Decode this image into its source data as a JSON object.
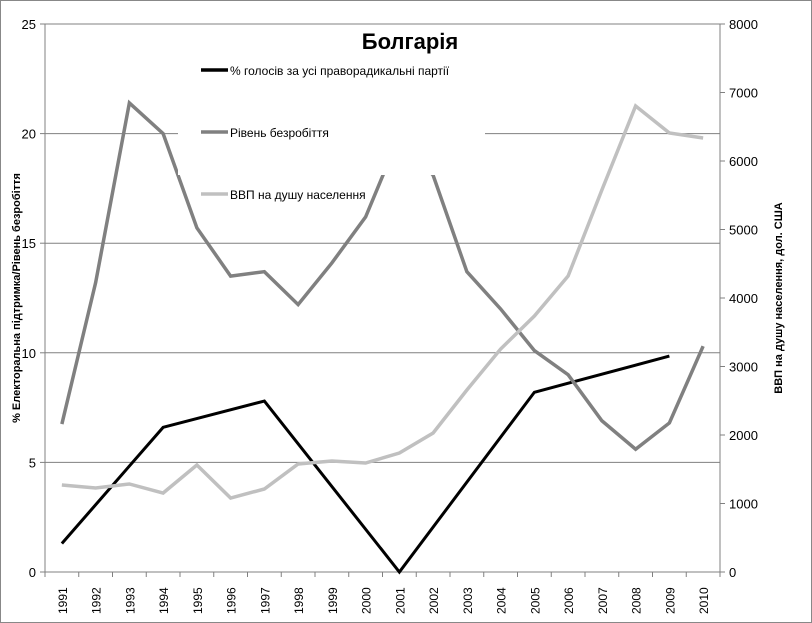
{
  "chart_data": {
    "type": "line",
    "title": "Болгарія",
    "xlabel": "",
    "ylabel": "% Електоральна підтримка/Рівень безробіття",
    "y2label": "ВВП на душу населення, дол. США",
    "categories": [
      "1991",
      "1992",
      "1993",
      "1994",
      "1995",
      "1996",
      "1997",
      "1998",
      "1999",
      "2000",
      "2001",
      "2002",
      "2003",
      "2004",
      "2005",
      "2006",
      "2007",
      "2008",
      "2009",
      "2010"
    ],
    "ylim": [
      0,
      25
    ],
    "yticks": [
      0,
      5,
      10,
      15,
      20,
      25
    ],
    "y2lim": [
      0,
      8000
    ],
    "y2ticks": [
      0,
      1000,
      2000,
      3000,
      4000,
      5000,
      6000,
      7000,
      8000
    ],
    "grid": true,
    "legend": "top-center",
    "series": [
      {
        "name": "% голосів за усі праворадикальні партії",
        "axis": "left",
        "color": "#000000",
        "values": [
          1.3,
          null,
          null,
          6.6,
          null,
          null,
          7.8,
          null,
          null,
          null,
          0,
          null,
          null,
          null,
          8.2,
          null,
          null,
          null,
          9.85,
          null
        ]
      },
      {
        "name": "Рівень безробіття",
        "axis": "left",
        "color": "#808080",
        "values": [
          6.75,
          13.2,
          21.4,
          20.0,
          15.7,
          13.5,
          13.7,
          12.2,
          14.1,
          16.2,
          19.9,
          18.1,
          13.7,
          12.0,
          10.1,
          9.0,
          6.9,
          5.6,
          6.8,
          10.3
        ]
      },
      {
        "name": "ВВП на душу населення",
        "axis": "right",
        "color": "#c0c0c0",
        "values": [
          1270,
          1226,
          1285,
          1153,
          1562,
          1080,
          1212,
          1577,
          1620,
          1591,
          1737,
          2029,
          2657,
          3255,
          3737,
          4321,
          5577,
          6803,
          6409,
          6336
        ]
      }
    ]
  }
}
